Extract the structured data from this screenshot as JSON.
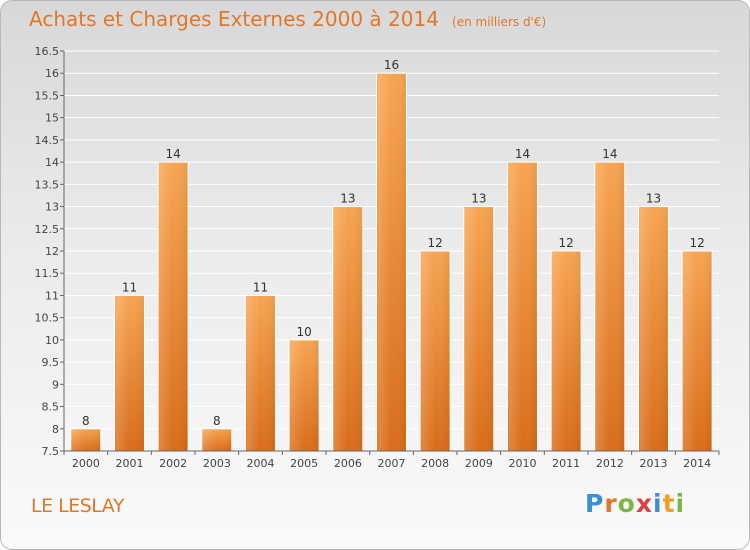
{
  "title": "Achats et Charges Externes 2000 à 2014",
  "subtitle": "(en milliers d'€)",
  "commune": "LE LESLAY",
  "logo": {
    "letters": [
      "P",
      "r",
      "o",
      "x",
      "i",
      "t",
      "i"
    ],
    "colors": [
      "#3a8fd0",
      "#e0782a",
      "#7ab648",
      "#e04040",
      "#3a8fd0",
      "#f0a020",
      "#7ab648"
    ]
  },
  "chart_data": {
    "type": "bar",
    "categories": [
      "2000",
      "2001",
      "2002",
      "2003",
      "2004",
      "2005",
      "2006",
      "2007",
      "2008",
      "2009",
      "2010",
      "2011",
      "2012",
      "2013",
      "2014"
    ],
    "values": [
      8,
      11,
      14,
      8,
      11,
      10,
      13,
      16,
      12,
      13,
      14,
      12,
      14,
      13,
      12
    ],
    "value_labels": [
      "8",
      "11",
      "14",
      "8",
      "11",
      "10",
      "13",
      "16",
      "12",
      "13",
      "14",
      "12",
      "14",
      "13",
      "12"
    ],
    "ylim": [
      7.5,
      16.5
    ],
    "yticks": [
      "7.5",
      "8",
      "8.5",
      "9",
      "9.5",
      "10",
      "10.5",
      "11",
      "11.5",
      "12",
      "12.5",
      "13",
      "13.5",
      "14",
      "14.5",
      "15",
      "15.5",
      "16",
      "16.5"
    ],
    "grid": true,
    "bar_color": "#f0862a",
    "xlabel": "",
    "ylabel": ""
  }
}
